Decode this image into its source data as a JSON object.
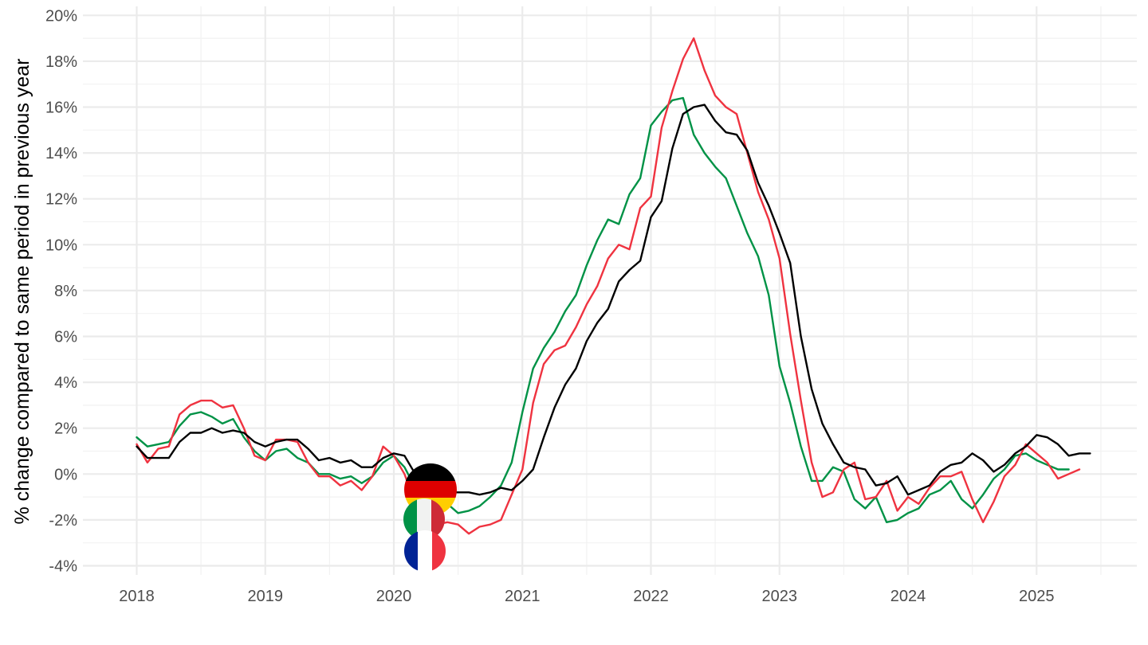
{
  "chart_data": {
    "type": "line",
    "title": "",
    "xlabel": "",
    "ylabel": "% change compared to same period in previous year",
    "x_ticks": [
      "2018",
      "2019",
      "2020",
      "2021",
      "2022",
      "2023",
      "2024",
      "2025"
    ],
    "y_ticks": [
      "-4%",
      "-2%",
      "0%",
      "2%",
      "4%",
      "6%",
      "8%",
      "10%",
      "12%",
      "14%",
      "16%",
      "18%",
      "20%"
    ],
    "xlim": [
      "2017-09",
      "2025-09"
    ],
    "ylim": [
      -4,
      20
    ],
    "grid": true,
    "legend": "flag markers on lines near 2020-04",
    "x_start": "2018-01",
    "series": [
      {
        "flag": "germany-flag",
        "color": "#000000",
        "values": [
          1.2,
          0.7,
          0.7,
          0.7,
          1.4,
          1.8,
          1.8,
          2.0,
          1.8,
          1.9,
          1.8,
          1.4,
          1.2,
          1.4,
          1.5,
          1.5,
          1.1,
          0.6,
          0.7,
          0.5,
          0.6,
          0.3,
          0.3,
          0.7,
          0.9,
          0.8,
          0.0,
          -0.8,
          -0.8,
          -0.8,
          -0.8,
          -0.8,
          -0.9,
          -0.8,
          -0.6,
          -0.7,
          -0.3,
          0.2,
          1.6,
          2.9,
          3.9,
          4.6,
          5.8,
          6.6,
          7.2,
          8.4,
          8.9,
          9.3,
          11.2,
          11.9,
          14.2,
          15.7,
          16.0,
          16.1,
          15.4,
          14.9,
          14.8,
          14.1,
          12.7,
          11.7,
          10.5,
          9.2,
          6.0,
          3.7,
          2.2,
          1.3,
          0.5,
          0.3,
          0.2,
          -0.5,
          -0.4,
          -0.1,
          -0.9,
          -0.7,
          -0.5,
          0.1,
          0.4,
          0.5,
          0.9,
          0.6,
          0.1,
          0.4,
          0.9,
          1.2,
          1.7,
          1.6,
          1.3,
          0.8,
          0.9,
          0.9
        ]
      },
      {
        "flag": "italy-flag",
        "color": "#009246",
        "values": [
          1.6,
          1.2,
          1.3,
          1.4,
          2.1,
          2.6,
          2.7,
          2.5,
          2.2,
          2.4,
          1.6,
          1.0,
          0.6,
          1.0,
          1.1,
          0.7,
          0.5,
          0.0,
          0.0,
          -0.2,
          -0.1,
          -0.4,
          -0.1,
          0.5,
          0.8,
          0.3,
          -0.6,
          -1.5,
          -1.5,
          -1.3,
          -1.7,
          -1.6,
          -1.4,
          -1.0,
          -0.5,
          0.5,
          2.7,
          4.6,
          5.5,
          6.2,
          7.1,
          7.8,
          9.1,
          10.2,
          11.1,
          10.9,
          12.2,
          12.9,
          15.2,
          15.8,
          16.3,
          16.4,
          14.8,
          14.0,
          13.4,
          12.9,
          11.7,
          10.5,
          9.5,
          7.8,
          4.7,
          3.1,
          1.2,
          -0.3,
          -0.3,
          0.3,
          0.1,
          -1.1,
          -1.5,
          -1.0,
          -2.1,
          -2.0,
          -1.7,
          -1.5,
          -0.9,
          -0.7,
          -0.3,
          -1.1,
          -1.5,
          -0.9,
          -0.2,
          0.2,
          0.8,
          0.9,
          0.6,
          0.4,
          0.2,
          0.2
        ]
      },
      {
        "flag": "france-flag",
        "color": "#ef3340",
        "values": [
          1.3,
          0.5,
          1.1,
          1.2,
          2.6,
          3.0,
          3.2,
          3.2,
          2.9,
          3.0,
          2.0,
          0.8,
          0.6,
          1.5,
          1.5,
          1.4,
          0.5,
          -0.1,
          -0.1,
          -0.5,
          -0.3,
          -0.7,
          -0.1,
          1.2,
          0.8,
          0.0,
          -1.3,
          -2.4,
          -2.2,
          -2.1,
          -2.2,
          -2.6,
          -2.3,
          -2.2,
          -2.0,
          -0.9,
          0.2,
          3.1,
          4.8,
          5.4,
          5.6,
          6.4,
          7.4,
          8.2,
          9.4,
          10.0,
          9.8,
          11.6,
          12.1,
          15.1,
          16.7,
          18.1,
          19.0,
          17.6,
          16.5,
          16.0,
          15.7,
          14.0,
          12.3,
          11.1,
          9.4,
          6.1,
          3.2,
          0.5,
          -1.0,
          -0.8,
          0.2,
          0.5,
          -1.1,
          -1.0,
          -0.3,
          -1.6,
          -1.0,
          -1.3,
          -0.6,
          -0.1,
          -0.1,
          0.1,
          -1.1,
          -2.1,
          -1.2,
          -0.1,
          0.4,
          1.3,
          0.9,
          0.5,
          -0.2,
          0.0,
          0.2
        ]
      }
    ]
  }
}
